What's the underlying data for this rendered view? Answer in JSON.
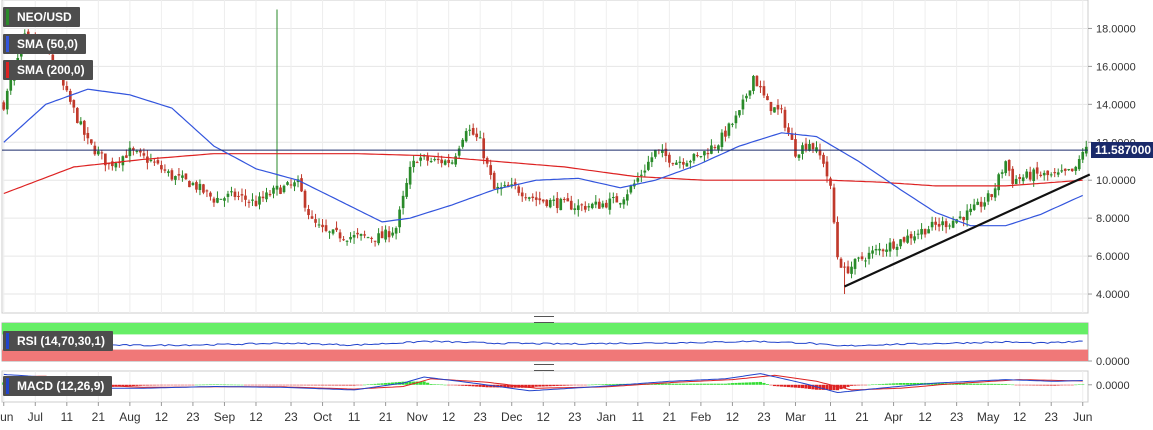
{
  "labels": {
    "symbol": "NEO/USD",
    "sma50": "SMA (50,0)",
    "sma200": "SMA (200,0)",
    "rsi": "RSI (14,70,30,1)",
    "macd": "MACD (12,26,9)"
  },
  "current_price_label": "11.587000",
  "colors": {
    "up": "#2a8a2a",
    "down": "#c0392b",
    "sma50": "#3355dd",
    "sma200": "#dd2222",
    "rsi_line": "#2244cc",
    "rsi_overbought_zone": "#66ee66",
    "rsi_oversold_zone": "#f07878",
    "macd_line": "#2244cc",
    "signal_line": "#dd2222",
    "hist_up": "#33dd33",
    "hist_down": "#dd2222",
    "price_line": "#1a2a6a",
    "badge": "#1a2a6a",
    "trendline": "#111111",
    "tag_bg": "#4d4d4d"
  },
  "chart_data": [
    {
      "type": "candlestick",
      "title": "NEO/USD",
      "ylim": [
        3.0,
        19.5
      ],
      "y_ticks": [
        "4.0000",
        "6.0000",
        "8.0000",
        "10.0000",
        "12.0000",
        "14.0000",
        "16.0000",
        "18.0000"
      ],
      "x_ticks": [
        "Jun",
        "Jul",
        "11",
        "21",
        "Aug",
        "12",
        "23",
        "Sep",
        "12",
        "23",
        "Oct",
        "11",
        "21",
        "Nov",
        "12",
        "23",
        "Dec",
        "12",
        "23",
        "Jan",
        "11",
        "21",
        "Feb",
        "12",
        "23",
        "Mar",
        "11",
        "21",
        "Apr",
        "12",
        "23",
        "May",
        "12",
        "23",
        "Jun"
      ],
      "current_price": 11.587,
      "close_path_keypoints": [
        [
          0,
          14.0
        ],
        [
          6,
          17.5
        ],
        [
          12,
          17.0
        ],
        [
          18,
          14.5
        ],
        [
          24,
          12.0
        ],
        [
          30,
          10.8
        ],
        [
          36,
          11.5
        ],
        [
          42,
          11.0
        ],
        [
          48,
          10.2
        ],
        [
          54,
          9.8
        ],
        [
          60,
          9.0
        ],
        [
          66,
          9.2
        ],
        [
          72,
          8.8
        ],
        [
          78,
          9.5
        ],
        [
          84,
          9.8
        ],
        [
          88,
          7.8
        ],
        [
          92,
          7.2
        ],
        [
          100,
          7.0
        ],
        [
          108,
          7.0
        ],
        [
          112,
          7.5
        ],
        [
          116,
          10.5
        ],
        [
          118,
          11.2
        ],
        [
          122,
          11.0
        ],
        [
          128,
          11.0
        ],
        [
          132,
          12.8
        ],
        [
          136,
          12.0
        ],
        [
          140,
          9.5
        ],
        [
          146,
          9.6
        ],
        [
          152,
          9.0
        ],
        [
          158,
          8.8
        ],
        [
          164,
          8.6
        ],
        [
          170,
          8.7
        ],
        [
          176,
          9.0
        ],
        [
          180,
          9.8
        ],
        [
          186,
          11.5
        ],
        [
          192,
          11.0
        ],
        [
          198,
          11.2
        ],
        [
          204,
          12.0
        ],
        [
          210,
          13.5
        ],
        [
          214,
          15.5
        ],
        [
          218,
          14.0
        ],
        [
          222,
          13.5
        ],
        [
          226,
          11.5
        ],
        [
          230,
          12.0
        ],
        [
          234,
          11.0
        ],
        [
          236,
          9.5
        ],
        [
          238,
          6.0
        ],
        [
          240,
          5.2
        ],
        [
          246,
          6.0
        ],
        [
          252,
          6.5
        ],
        [
          258,
          7.0
        ],
        [
          264,
          7.5
        ],
        [
          270,
          7.8
        ],
        [
          276,
          8.3
        ],
        [
          282,
          9.2
        ],
        [
          286,
          11.0
        ],
        [
          288,
          10.0
        ],
        [
          294,
          10.3
        ],
        [
          300,
          10.2
        ],
        [
          306,
          10.5
        ],
        [
          308,
          11.587
        ]
      ],
      "annotations": {
        "spike": {
          "bar": 78,
          "high": 19.0
        },
        "low_wick": {
          "bar": 240,
          "low": 4.0
        }
      },
      "sma50_keypoints": [
        [
          0,
          12.0
        ],
        [
          12,
          14.0
        ],
        [
          24,
          14.8
        ],
        [
          36,
          14.5
        ],
        [
          48,
          13.8
        ],
        [
          60,
          11.8
        ],
        [
          72,
          10.6
        ],
        [
          84,
          10.0
        ],
        [
          96,
          8.9
        ],
        [
          108,
          7.8
        ],
        [
          116,
          8.0
        ],
        [
          128,
          8.7
        ],
        [
          140,
          9.5
        ],
        [
          152,
          10.0
        ],
        [
          164,
          10.1
        ],
        [
          176,
          9.6
        ],
        [
          186,
          10.0
        ],
        [
          198,
          10.8
        ],
        [
          210,
          11.8
        ],
        [
          222,
          12.5
        ],
        [
          232,
          12.3
        ],
        [
          244,
          11.0
        ],
        [
          256,
          9.5
        ],
        [
          266,
          8.3
        ],
        [
          276,
          7.6
        ],
        [
          286,
          7.6
        ],
        [
          296,
          8.2
        ],
        [
          308,
          9.2
        ]
      ],
      "sma200_keypoints": [
        [
          0,
          9.3
        ],
        [
          20,
          10.7
        ],
        [
          40,
          11.1
        ],
        [
          60,
          11.4
        ],
        [
          80,
          11.4
        ],
        [
          100,
          11.4
        ],
        [
          120,
          11.3
        ],
        [
          140,
          11.0
        ],
        [
          160,
          10.7
        ],
        [
          180,
          10.2
        ],
        [
          200,
          10.0
        ],
        [
          220,
          10.0
        ],
        [
          236,
          10.0
        ],
        [
          250,
          9.9
        ],
        [
          266,
          9.7
        ],
        [
          286,
          9.7
        ],
        [
          308,
          10.0
        ]
      ],
      "trendline": [
        [
          240,
          4.4
        ],
        [
          310,
          10.3
        ]
      ]
    },
    {
      "type": "line",
      "title": "RSI (14,70,30,1)",
      "y_ticks": [
        "0.0000"
      ],
      "overbought": 70,
      "oversold": 30,
      "ylim": [
        0,
        100
      ],
      "keypoints": [
        [
          0,
          46
        ],
        [
          20,
          43
        ],
        [
          40,
          41
        ],
        [
          60,
          43
        ],
        [
          80,
          47
        ],
        [
          100,
          42
        ],
        [
          116,
          49
        ],
        [
          120,
          52
        ],
        [
          140,
          47
        ],
        [
          160,
          45
        ],
        [
          180,
          47
        ],
        [
          200,
          49
        ],
        [
          214,
          52
        ],
        [
          230,
          47
        ],
        [
          238,
          39
        ],
        [
          250,
          43
        ],
        [
          270,
          47
        ],
        [
          286,
          50
        ],
        [
          296,
          47
        ],
        [
          308,
          51
        ]
      ]
    },
    {
      "type": "line",
      "title": "MACD (12,26,9)",
      "y_ticks": [
        "0.0000"
      ],
      "ylim": [
        -1.0,
        0.8
      ],
      "macd_keypoints": [
        [
          0,
          0.6
        ],
        [
          12,
          0.45
        ],
        [
          24,
          -0.2
        ],
        [
          40,
          -0.2
        ],
        [
          60,
          -0.1
        ],
        [
          80,
          -0.15
        ],
        [
          100,
          -0.3
        ],
        [
          114,
          0.1
        ],
        [
          120,
          0.45
        ],
        [
          134,
          0.1
        ],
        [
          150,
          -0.35
        ],
        [
          170,
          -0.1
        ],
        [
          190,
          0.2
        ],
        [
          206,
          0.35
        ],
        [
          216,
          0.65
        ],
        [
          228,
          0.1
        ],
        [
          238,
          -0.45
        ],
        [
          250,
          -0.2
        ],
        [
          266,
          0.1
        ],
        [
          286,
          0.3
        ],
        [
          300,
          0.2
        ],
        [
          308,
          0.25
        ]
      ],
      "signal_keypoints": [
        [
          0,
          0.45
        ],
        [
          12,
          0.5
        ],
        [
          24,
          0.0
        ],
        [
          40,
          -0.15
        ],
        [
          60,
          -0.12
        ],
        [
          80,
          -0.12
        ],
        [
          100,
          -0.25
        ],
        [
          114,
          -0.1
        ],
        [
          122,
          0.35
        ],
        [
          138,
          0.15
        ],
        [
          152,
          -0.2
        ],
        [
          172,
          -0.12
        ],
        [
          192,
          0.15
        ],
        [
          208,
          0.3
        ],
        [
          220,
          0.55
        ],
        [
          232,
          0.2
        ],
        [
          242,
          -0.3
        ],
        [
          256,
          -0.2
        ],
        [
          270,
          0.05
        ],
        [
          290,
          0.3
        ],
        [
          308,
          0.22
        ]
      ]
    }
  ]
}
